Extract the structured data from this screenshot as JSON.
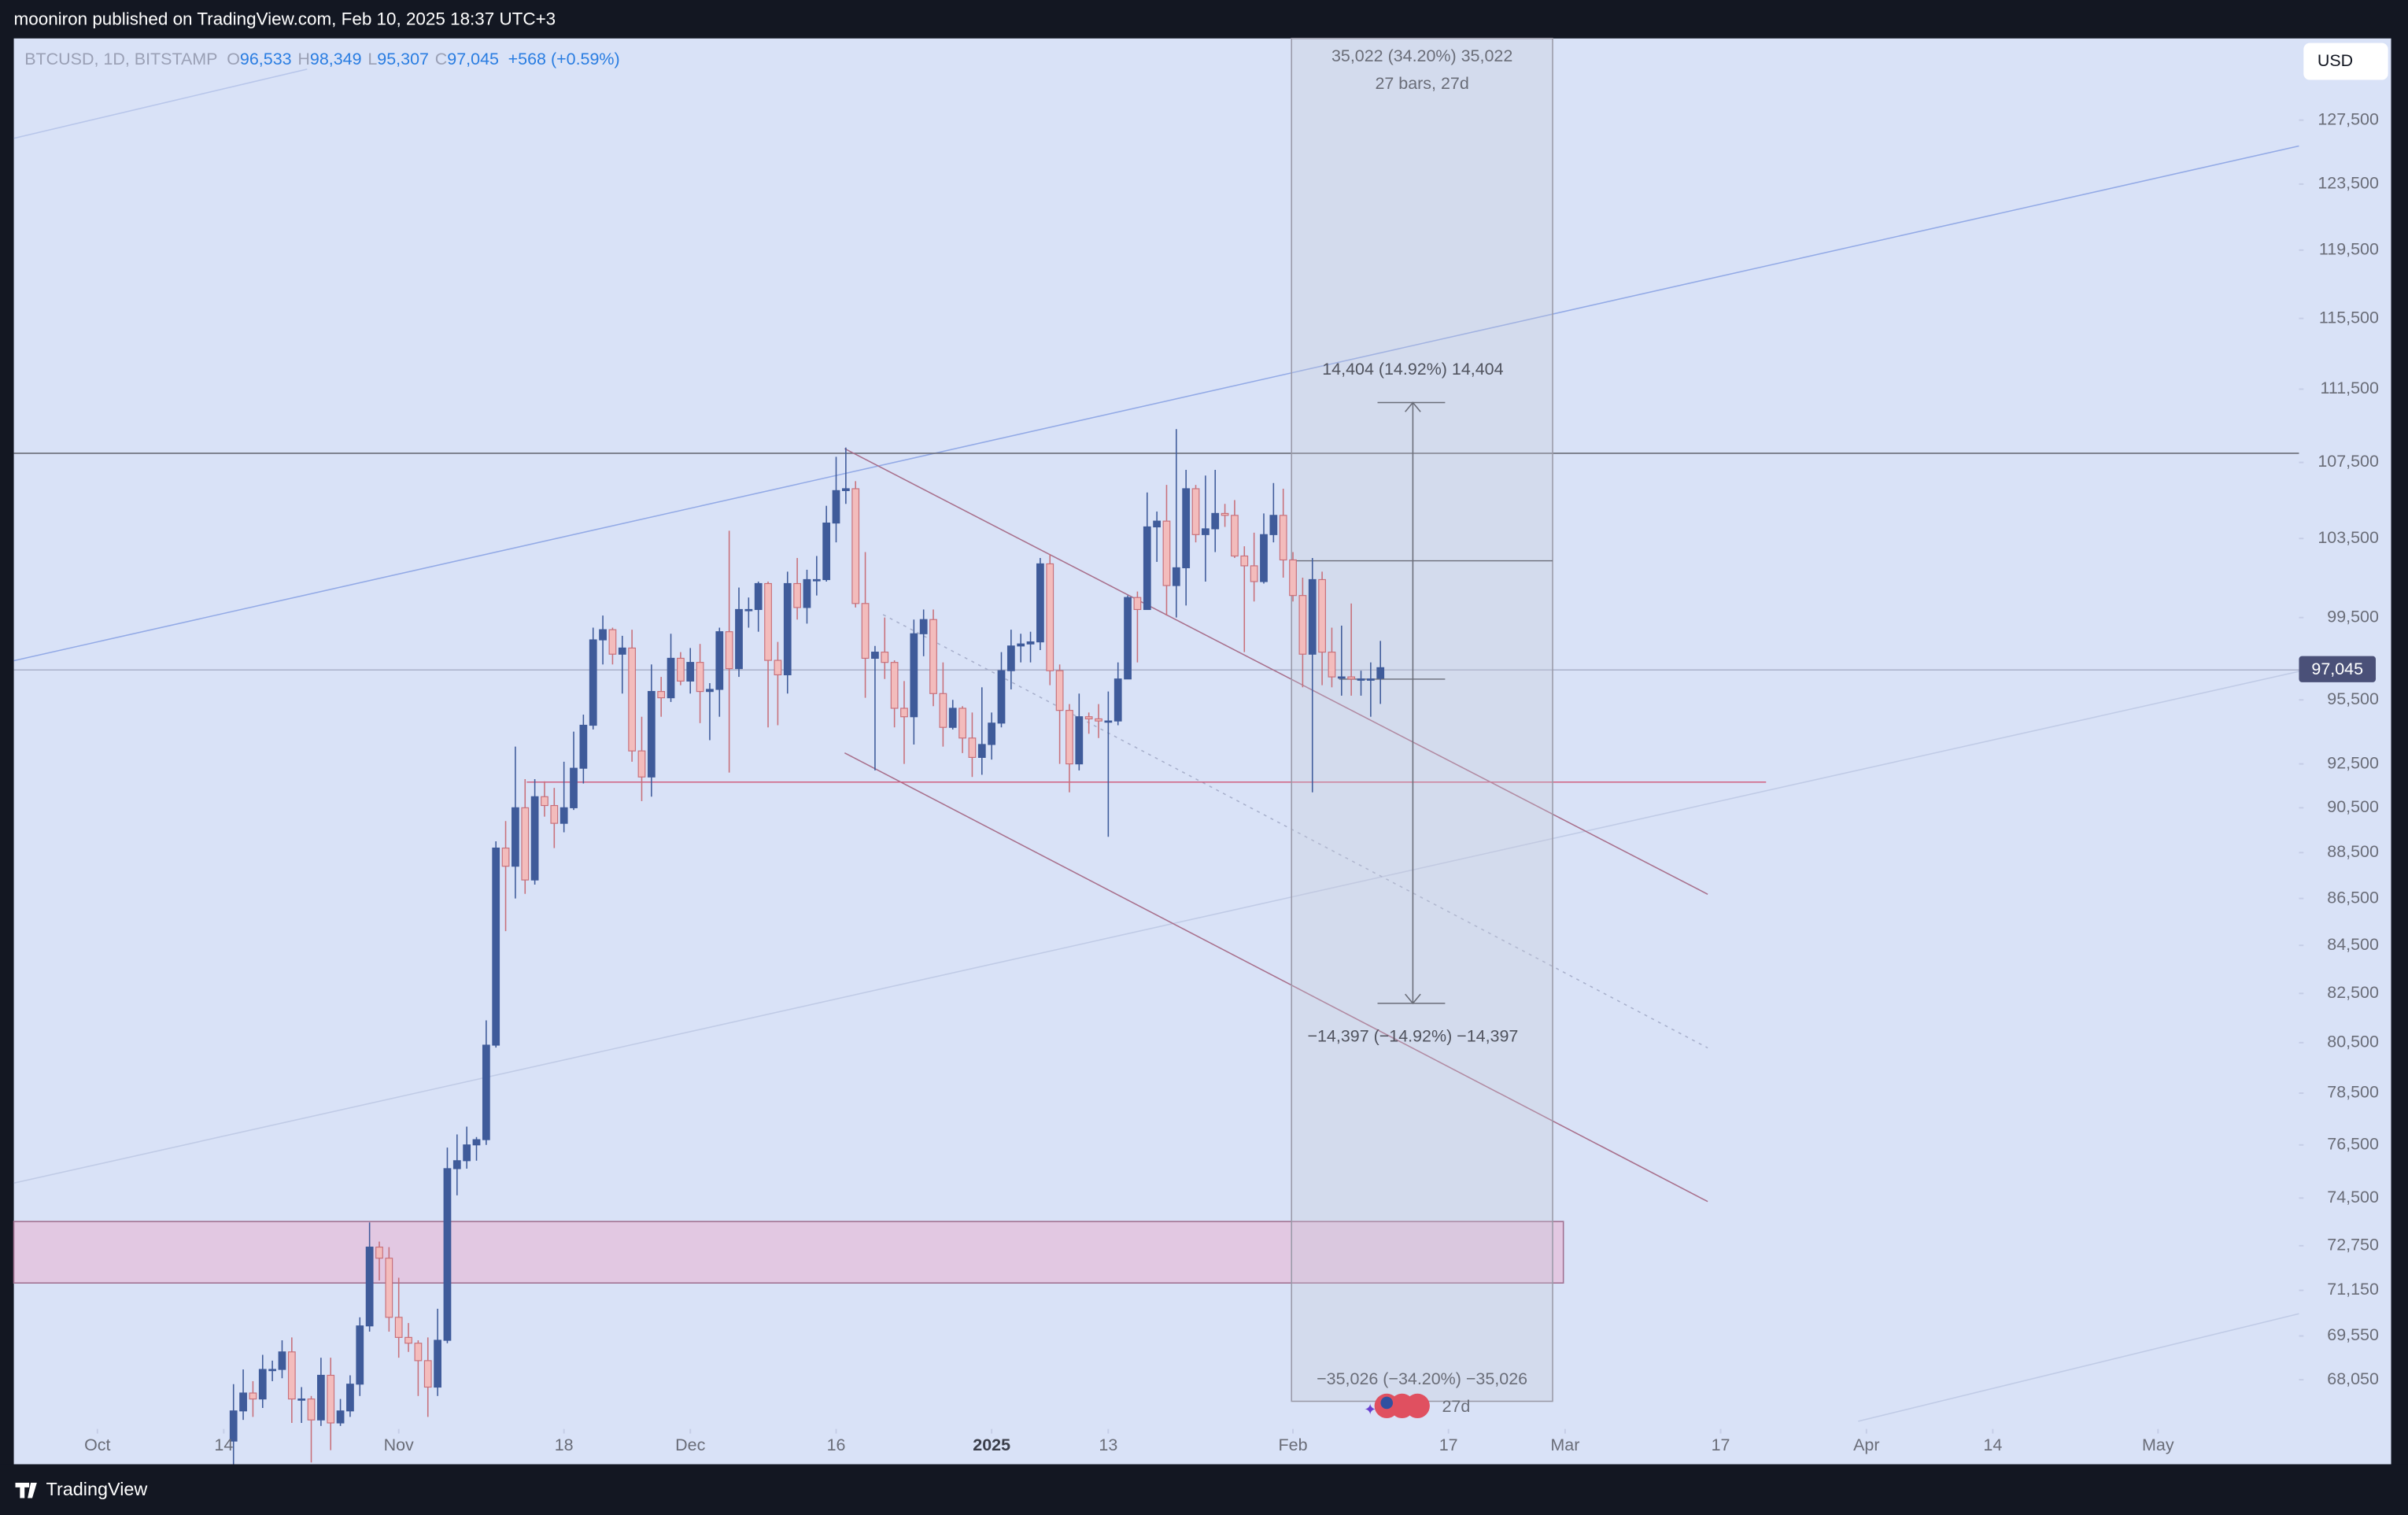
{
  "header": {
    "publisher": "mooniron published on TradingView.com, Feb 10, 2025 18:37 UTC+3"
  },
  "footer": {
    "brand": "TradingView"
  },
  "toolbar": {
    "currency": "USD"
  },
  "legend": {
    "symbol": "BTCUSD, 1D, BITSTAMP",
    "o_label": "O",
    "open": "96,533",
    "h_label": "H",
    "high": "98,349",
    "l_label": "L",
    "low": "95,307",
    "c_label": "C",
    "close": "97,045",
    "change": "+568 (+0.59%)"
  },
  "annotations": [
    "35,022 (34.20%) 35,022",
    "27 bars, 27d",
    "14,404 (14.92%) 14,404",
    "−14,397 (−14.92%) −14,397",
    "−35,026 (−34.20%) −35,026",
    "27d"
  ],
  "chart_data": {
    "type": "candlestick",
    "log_scale": true,
    "up_color": "#3f5b9a",
    "down_color": "#f3bcbc",
    "down_border": "#c8707a",
    "last_price_label": "97,045",
    "xlim": [
      -22.6,
      212.5
    ],
    "ylim": [
      66400,
      132800
    ],
    "xticks": [
      {
        "value": -14,
        "label": "Oct"
      },
      {
        "value": -1,
        "label": "14"
      },
      {
        "value": 17,
        "label": "Nov"
      },
      {
        "value": 34,
        "label": "18"
      },
      {
        "value": 47,
        "label": "Dec"
      },
      {
        "value": 62,
        "label": "16"
      },
      {
        "value": 78,
        "label": "2025"
      },
      {
        "value": 90,
        "label": "13"
      },
      {
        "value": 109,
        "label": "Feb"
      },
      {
        "value": 125,
        "label": "17"
      },
      {
        "value": 137,
        "label": "Mar"
      },
      {
        "value": 153,
        "label": "17"
      },
      {
        "value": 168,
        "label": "Apr"
      },
      {
        "value": 181,
        "label": "14"
      },
      {
        "value": 198,
        "label": "May"
      }
    ],
    "yticks": [
      {
        "value": 127500,
        "label": "127,500"
      },
      {
        "value": 123500,
        "label": "123,500"
      },
      {
        "value": 119500,
        "label": "119,500"
      },
      {
        "value": 115500,
        "label": "115,500"
      },
      {
        "value": 111500,
        "label": "111,500"
      },
      {
        "value": 107500,
        "label": "107,500"
      },
      {
        "value": 103500,
        "label": "103,500"
      },
      {
        "value": 99500,
        "label": "99,500"
      },
      {
        "value": 95500,
        "label": "95,500"
      },
      {
        "value": 92500,
        "label": "92,500"
      },
      {
        "value": 90500,
        "label": "90,500"
      },
      {
        "value": 88500,
        "label": "88,500"
      },
      {
        "value": 86500,
        "label": "86,500"
      },
      {
        "value": 84500,
        "label": "84,500"
      },
      {
        "value": 82500,
        "label": "82,500"
      },
      {
        "value": 80500,
        "label": "80,500"
      },
      {
        "value": 78500,
        "label": "78,500"
      },
      {
        "value": 76500,
        "label": "76,500"
      },
      {
        "value": 74500,
        "label": "74,500"
      },
      {
        "value": 72750,
        "label": "72,750"
      },
      {
        "value": 71150,
        "label": "71,150"
      },
      {
        "value": 69550,
        "label": "69,550"
      },
      {
        "value": 68050,
        "label": "68,050"
      }
    ],
    "ohlc": [
      [
        66000,
        67900,
        64800,
        67000
      ],
      [
        67000,
        68400,
        66700,
        67600
      ],
      [
        67600,
        68000,
        66800,
        67400
      ],
      [
        67400,
        68900,
        67100,
        68400
      ],
      [
        68400,
        68700,
        68000,
        68400
      ],
      [
        68400,
        69400,
        68100,
        69000
      ],
      [
        69000,
        69500,
        66600,
        67400
      ],
      [
        67400,
        67800,
        66600,
        67400
      ],
      [
        67400,
        67500,
        65300,
        66700
      ],
      [
        66700,
        68800,
        66500,
        68200
      ],
      [
        68200,
        68800,
        65700,
        66600
      ],
      [
        66600,
        67400,
        66500,
        67000
      ],
      [
        67000,
        68200,
        66800,
        67900
      ],
      [
        67900,
        70200,
        67500,
        69900
      ],
      [
        69900,
        73600,
        69700,
        72700
      ],
      [
        72700,
        72900,
        71500,
        72300
      ],
      [
        72300,
        72700,
        69700,
        70200
      ],
      [
        70200,
        71600,
        68800,
        69500
      ],
      [
        69500,
        70000,
        69000,
        69300
      ],
      [
        69300,
        69400,
        67500,
        68700
      ],
      [
        68700,
        69500,
        66800,
        67800
      ],
      [
        67800,
        70500,
        67500,
        69400
      ],
      [
        69400,
        76400,
        69300,
        75600
      ],
      [
        75600,
        76900,
        74600,
        75900
      ],
      [
        75900,
        77200,
        75600,
        76500
      ],
      [
        76500,
        76800,
        75900,
        76700
      ],
      [
        76700,
        81400,
        76500,
        80400
      ],
      [
        80400,
        89000,
        80300,
        88700
      ],
      [
        88700,
        89900,
        85100,
        87900
      ],
      [
        87900,
        93300,
        86500,
        90500
      ],
      [
        90500,
        91800,
        86700,
        87300
      ],
      [
        87300,
        91800,
        87100,
        91000
      ],
      [
        91000,
        91700,
        90100,
        90600
      ],
      [
        90600,
        91400,
        88700,
        89800
      ],
      [
        89800,
        92600,
        89400,
        90500
      ],
      [
        90500,
        94000,
        90400,
        92300
      ],
      [
        92300,
        94800,
        91600,
        94300
      ],
      [
        94300,
        99000,
        94100,
        98400
      ],
      [
        98400,
        99600,
        97200,
        98900
      ],
      [
        98900,
        99000,
        97200,
        97700
      ],
      [
        97700,
        98600,
        95800,
        98000
      ],
      [
        98000,
        98900,
        92600,
        93100
      ],
      [
        93100,
        94700,
        90800,
        91900
      ],
      [
        91900,
        97200,
        91000,
        95900
      ],
      [
        95900,
        96600,
        94700,
        95600
      ],
      [
        95600,
        98700,
        95400,
        97500
      ],
      [
        97500,
        97800,
        96200,
        96400
      ],
      [
        96400,
        98000,
        95800,
        97300
      ],
      [
        97300,
        98200,
        94400,
        95900
      ],
      [
        95900,
        96300,
        93600,
        96000
      ],
      [
        96000,
        99000,
        94700,
        98800
      ],
      [
        98800,
        103900,
        92100,
        97000
      ],
      [
        97000,
        101000,
        96600,
        99900
      ],
      [
        99900,
        100500,
        99000,
        99900
      ],
      [
        99900,
        101300,
        98800,
        101200
      ],
      [
        101200,
        101300,
        94200,
        97400
      ],
      [
        97400,
        98300,
        94300,
        96700
      ],
      [
        96700,
        101800,
        95800,
        101200
      ],
      [
        101200,
        102500,
        99400,
        100000
      ],
      [
        100000,
        101900,
        99200,
        101400
      ],
      [
        101400,
        102600,
        100600,
        101400
      ],
      [
        101400,
        105200,
        101300,
        104300
      ],
      [
        104300,
        107800,
        103300,
        106000
      ],
      [
        106000,
        108300,
        105300,
        106100
      ],
      [
        106100,
        106500,
        100000,
        100200
      ],
      [
        100200,
        102800,
        95600,
        97500
      ],
      [
        97500,
        98100,
        92200,
        97800
      ],
      [
        97800,
        99500,
        96500,
        97300
      ],
      [
        97300,
        97400,
        94200,
        95100
      ],
      [
        95100,
        96400,
        92500,
        94700
      ],
      [
        94700,
        99400,
        93400,
        98700
      ],
      [
        98700,
        99900,
        97600,
        99400
      ],
      [
        99400,
        99900,
        95200,
        95800
      ],
      [
        95800,
        97300,
        93300,
        94200
      ],
      [
        94200,
        95500,
        94100,
        95100
      ],
      [
        95100,
        95200,
        93000,
        93700
      ],
      [
        93700,
        94900,
        91900,
        92800
      ],
      [
        92800,
        96100,
        92000,
        93400
      ],
      [
        93400,
        94900,
        92700,
        94400
      ],
      [
        94400,
        97800,
        94200,
        96900
      ],
      [
        96900,
        98900,
        96000,
        98100
      ],
      [
        98100,
        98700,
        97300,
        98200
      ],
      [
        98200,
        98800,
        97300,
        98300
      ],
      [
        98300,
        102500,
        97900,
        102200
      ],
      [
        102200,
        102700,
        96200,
        96900
      ],
      [
        96900,
        97200,
        92500,
        95000
      ],
      [
        95000,
        95300,
        91200,
        92500
      ],
      [
        92500,
        95800,
        92200,
        94700
      ],
      [
        94700,
        94900,
        93900,
        94600
      ],
      [
        94600,
        95300,
        93700,
        94500
      ],
      [
        94500,
        95900,
        89200,
        94500
      ],
      [
        94500,
        97300,
        94300,
        96500
      ],
      [
        96500,
        100600,
        96500,
        100500
      ],
      [
        100500,
        100800,
        97300,
        99900
      ],
      [
        99900,
        105900,
        99900,
        104100
      ],
      [
        104100,
        104900,
        102300,
        104400
      ],
      [
        104400,
        106300,
        99600,
        101100
      ],
      [
        101100,
        109300,
        99500,
        102000
      ],
      [
        102000,
        107100,
        100100,
        106100
      ],
      [
        106100,
        106300,
        103300,
        103700
      ],
      [
        103700,
        106800,
        101300,
        104000
      ],
      [
        104000,
        107100,
        102800,
        104800
      ],
      [
        104800,
        105300,
        104100,
        104700
      ],
      [
        104700,
        105500,
        102500,
        102600
      ],
      [
        102600,
        103100,
        97800,
        102100
      ],
      [
        102100,
        103800,
        100300,
        101300
      ],
      [
        101300,
        104800,
        101200,
        103700
      ],
      [
        103700,
        106400,
        103300,
        104700
      ],
      [
        104700,
        106100,
        101500,
        102400
      ],
      [
        102400,
        102800,
        100300,
        100600
      ],
      [
        100600,
        101500,
        96100,
        97700
      ],
      [
        97700,
        102500,
        91200,
        101400
      ],
      [
        101400,
        101800,
        96200,
        97800
      ],
      [
        97800,
        99000,
        96100,
        96600
      ],
      [
        96600,
        99100,
        95700,
        96600
      ],
      [
        96600,
        100200,
        95700,
        96500
      ],
      [
        96500,
        96900,
        95700,
        96500
      ],
      [
        96500,
        97300,
        94700,
        96500
      ],
      [
        96533,
        98349,
        95307,
        97045
      ]
    ]
  }
}
